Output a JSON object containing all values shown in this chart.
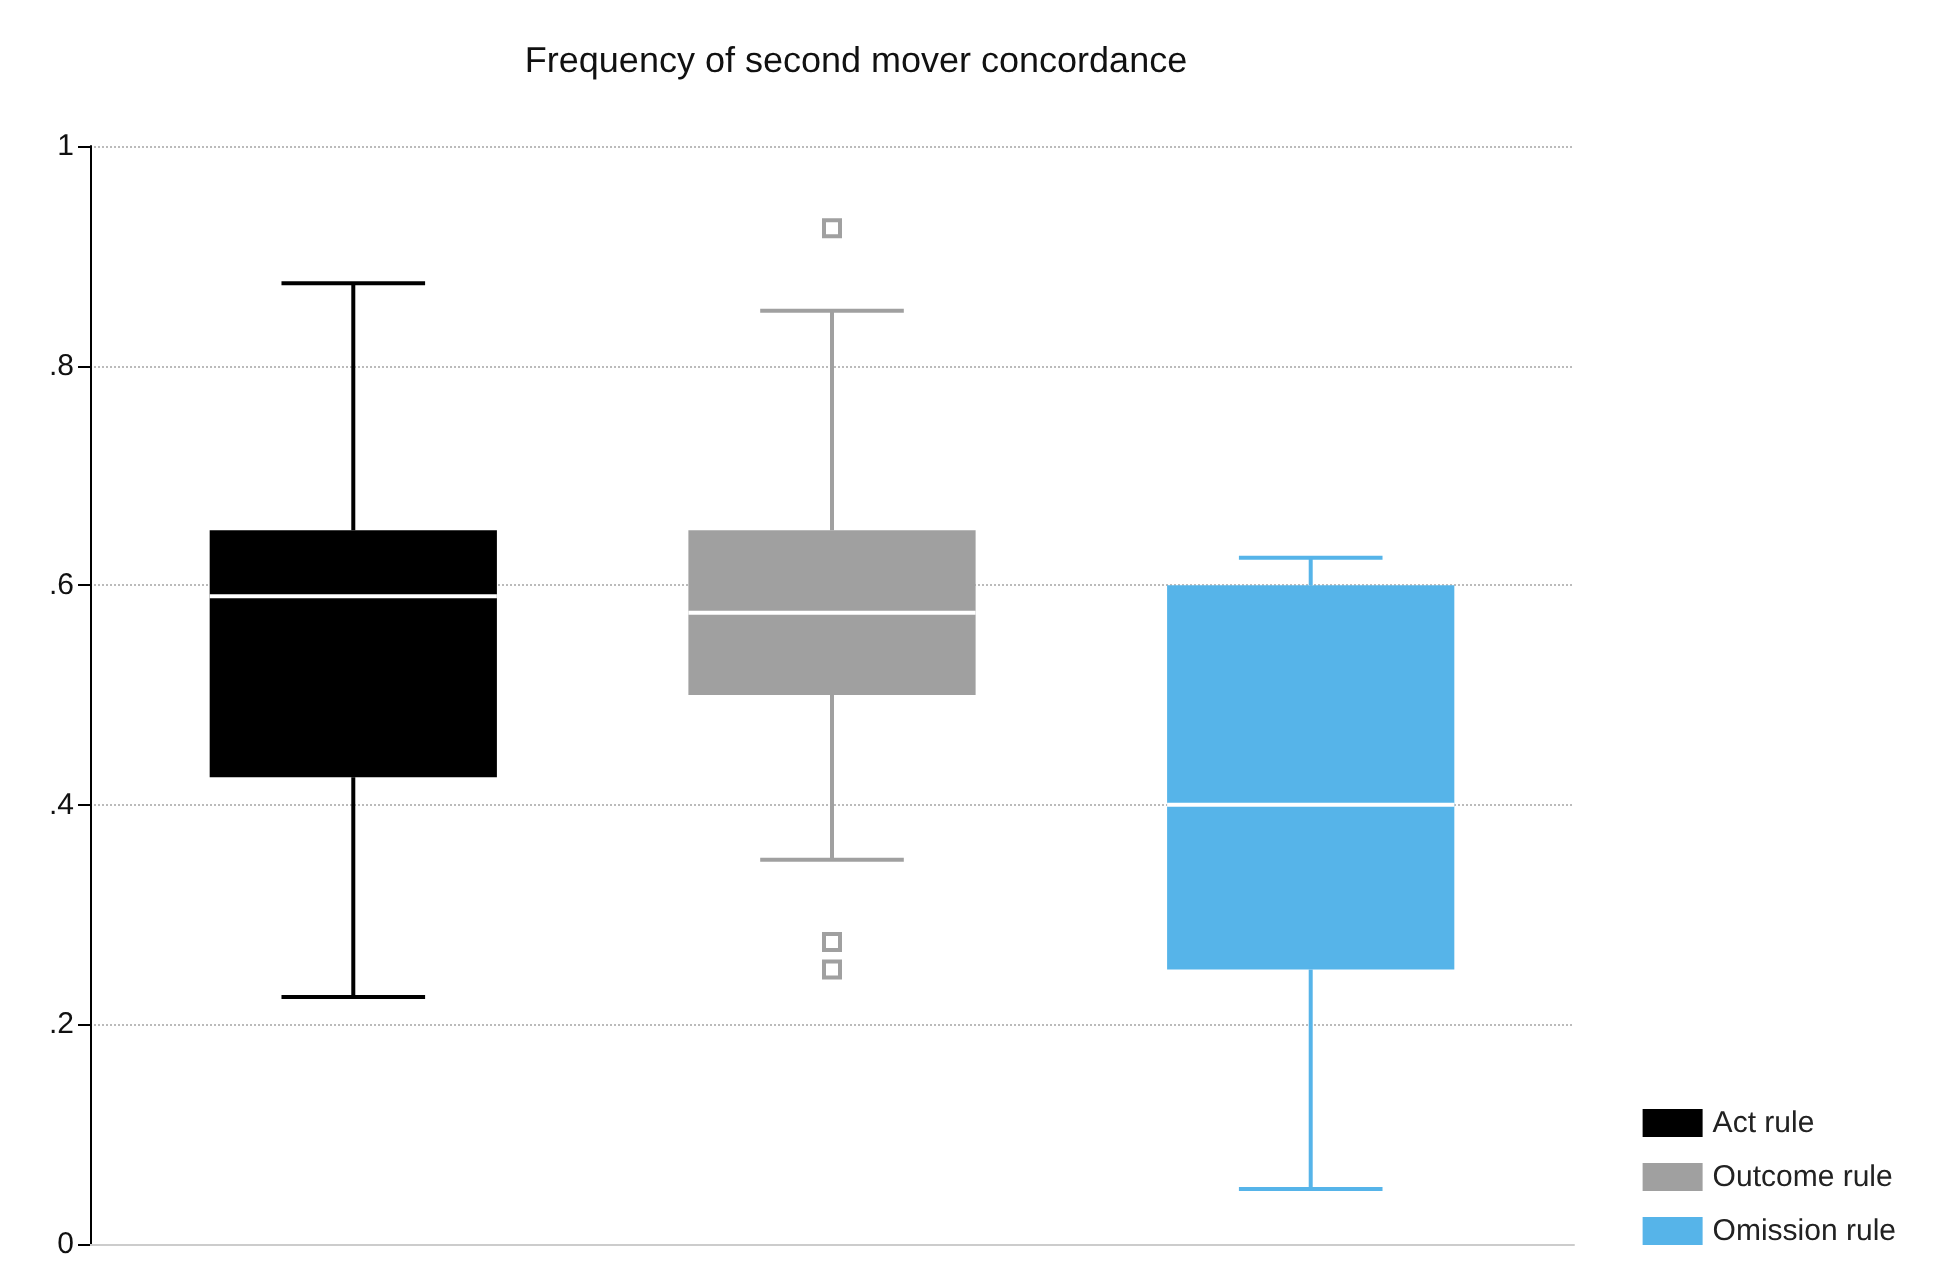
{
  "chart_data": {
    "type": "box",
    "title": "Frequency of second mover concordance",
    "categories": [
      null
    ],
    "series": [
      {
        "name": "Act rule",
        "color": "#000000",
        "boxes": [
          {
            "low": 0.225,
            "q1": 0.425,
            "median": 0.59,
            "q3": 0.65,
            "high": 0.875
          }
        ]
      },
      {
        "name": "Outcome rule",
        "color": "#a0a0a0",
        "boxes": [
          {
            "low": 0.35,
            "q1": 0.5,
            "median": 0.575,
            "q3": 0.65,
            "high": 0.85,
            "outliers": [
              0.925,
              0.275,
              0.25
            ]
          }
        ]
      },
      {
        "name": "Omission rule",
        "color": "#56b4e9",
        "boxes": [
          {
            "low": 0.05,
            "q1": 0.25,
            "median": 0.4,
            "q3": 0.6,
            "high": 0.625
          }
        ]
      }
    ],
    "ylim": [
      0,
      1
    ],
    "yticks": [
      {
        "value": 0,
        "label": "0"
      },
      {
        "value": 0.2,
        "label": ".2"
      },
      {
        "value": 0.4,
        "label": ".4"
      },
      {
        "value": 0.6,
        "label": ".6"
      },
      {
        "value": 0.8,
        "label": ".8"
      },
      {
        "value": 1,
        "label": "1"
      }
    ],
    "grid": "y",
    "legend": "bottom right",
    "marker": "square"
  }
}
